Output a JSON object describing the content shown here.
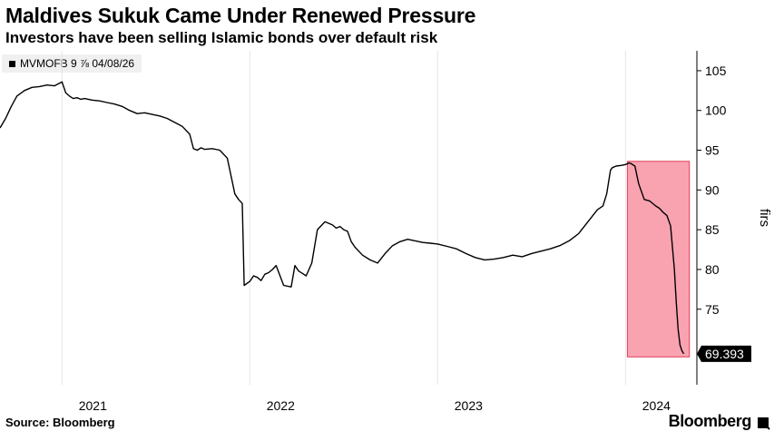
{
  "header": {
    "title": "Maldives Sukuk Came Under Renewed Pressure",
    "subtitle": "Investors have been selling Islamic bonds over default risk"
  },
  "legend": {
    "label": "MVMOFB 9 ⅞ 04/08/26"
  },
  "footer": {
    "source": "Source: Bloomberg",
    "brand": "Bloomberg"
  },
  "colors": {
    "line": "#000000",
    "highlight_fill": "#f9a3b0",
    "highlight_stroke": "#e0405a",
    "callout_bg": "#000000"
  },
  "chart_data": {
    "type": "line",
    "title": "Maldives Sukuk Came Under Renewed Pressure",
    "ylabel": "firs",
    "ylim": [
      65.5,
      107.5
    ],
    "yticks": [
      75,
      80,
      85,
      90,
      95,
      100,
      105
    ],
    "xlim": [
      2020.67,
      2024.38
    ],
    "xticks": [
      {
        "label": "2021",
        "value": 2021.0
      },
      {
        "label": "2022",
        "value": 2022.0
      },
      {
        "label": "2023",
        "value": 2023.0
      },
      {
        "label": "2024",
        "value": 2024.0
      }
    ],
    "last_value_label": "69.393",
    "highlight": {
      "x_range": [
        2024.01,
        2024.34
      ],
      "y_range": [
        69.0,
        93.6
      ]
    },
    "series": [
      {
        "x": [
          2020.67,
          2020.7,
          2020.73,
          2020.76,
          2020.8,
          2020.84,
          2020.88,
          2020.92,
          2020.96,
          2021.0,
          2021.02,
          2021.04,
          2021.06,
          2021.08,
          2021.1,
          2021.12,
          2021.16,
          2021.2,
          2021.24,
          2021.28,
          2021.32,
          2021.36,
          2021.4,
          2021.44,
          2021.48,
          2021.52,
          2021.56,
          2021.6,
          2021.64,
          2021.68,
          2021.7,
          2021.72,
          2021.74,
          2021.76,
          2021.8,
          2021.84,
          2021.88,
          2021.92,
          2021.94,
          2021.96,
          2021.97,
          2022.0,
          2022.02,
          2022.04,
          2022.06,
          2022.08,
          2022.1,
          2022.12,
          2022.14,
          2022.18,
          2022.22,
          2022.24,
          2022.26,
          2022.28,
          2022.3,
          2022.33,
          2022.36,
          2022.4,
          2022.44,
          2022.46,
          2022.48,
          2022.5,
          2022.52,
          2022.54,
          2022.56,
          2022.58,
          2022.6,
          2022.64,
          2022.68,
          2022.72,
          2022.76,
          2022.8,
          2022.84,
          2022.88,
          2022.92,
          2022.96,
          2023.0,
          2023.05,
          2023.1,
          2023.15,
          2023.2,
          2023.25,
          2023.3,
          2023.35,
          2023.4,
          2023.45,
          2023.5,
          2023.55,
          2023.6,
          2023.65,
          2023.7,
          2023.75,
          2023.8,
          2023.85,
          2023.88,
          2023.9,
          2023.92,
          2023.93,
          2023.95,
          2023.98,
          2024.0,
          2024.02,
          2024.03,
          2024.05,
          2024.07,
          2024.1,
          2024.13,
          2024.16,
          2024.18,
          2024.2,
          2024.22,
          2024.24,
          2024.26,
          2024.27,
          2024.28,
          2024.29,
          2024.3,
          2024.31
        ],
        "y": [
          97.8,
          99.0,
          100.5,
          101.8,
          102.5,
          102.9,
          103.0,
          103.2,
          103.1,
          103.6,
          102.2,
          101.8,
          101.5,
          101.6,
          101.4,
          101.5,
          101.3,
          101.2,
          101.0,
          100.8,
          100.5,
          100.0,
          99.6,
          99.7,
          99.5,
          99.3,
          99.0,
          98.5,
          98.0,
          97.0,
          95.2,
          95.0,
          95.3,
          95.1,
          95.2,
          95.0,
          94.0,
          89.5,
          88.8,
          88.3,
          78.0,
          78.5,
          79.2,
          79.0,
          78.6,
          79.4,
          79.6,
          80.0,
          80.5,
          78.0,
          77.8,
          80.5,
          79.8,
          79.5,
          79.2,
          80.8,
          85.0,
          86.0,
          85.6,
          85.2,
          85.4,
          85.0,
          84.8,
          83.5,
          82.8,
          82.3,
          81.8,
          81.2,
          80.8,
          82.0,
          83.0,
          83.5,
          83.8,
          83.6,
          83.4,
          83.3,
          83.2,
          82.9,
          82.6,
          82.0,
          81.5,
          81.2,
          81.3,
          81.5,
          81.8,
          81.6,
          82.0,
          82.3,
          82.6,
          83.0,
          83.6,
          84.5,
          86.0,
          87.5,
          88.0,
          89.5,
          92.5,
          92.8,
          93.0,
          93.1,
          93.2,
          93.4,
          93.3,
          93.0,
          90.8,
          88.8,
          88.6,
          88.0,
          87.7,
          87.2,
          86.8,
          85.5,
          80.0,
          76.0,
          72.5,
          70.5,
          69.8,
          69.393
        ]
      }
    ]
  }
}
